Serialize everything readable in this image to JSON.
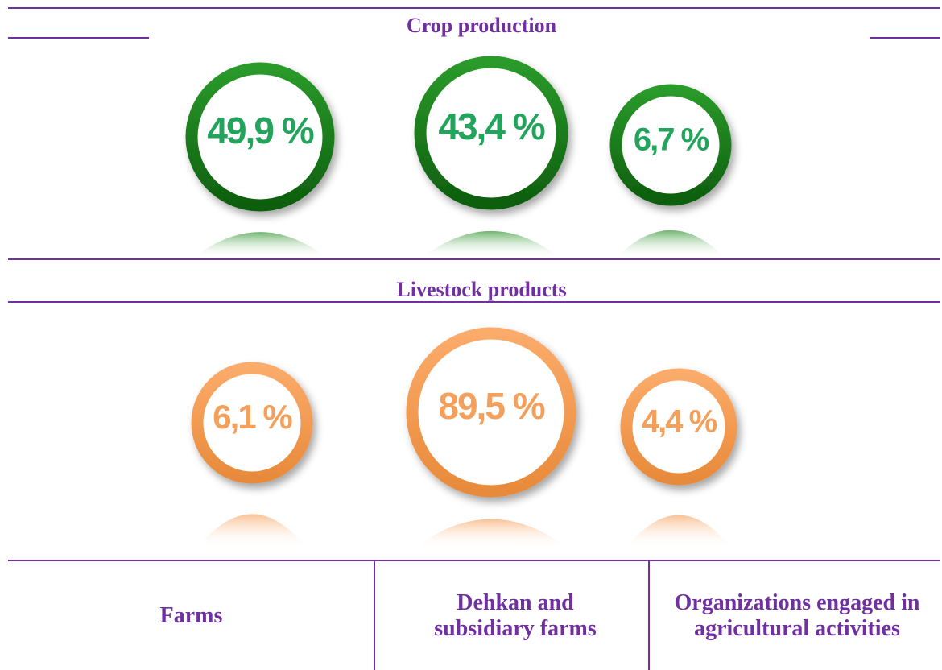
{
  "sections": [
    {
      "title": "Crop production",
      "items": [
        "49,9 %",
        "43,4 %",
        "6,7 %"
      ]
    },
    {
      "title": "Livestock products",
      "items": [
        "6,1 %",
        "89,5 %",
        "4,4 %"
      ]
    }
  ],
  "columns": [
    "Farms",
    "Dehkan and subsidiary farms",
    "Organizations engaged in agricultural activities"
  ]
}
